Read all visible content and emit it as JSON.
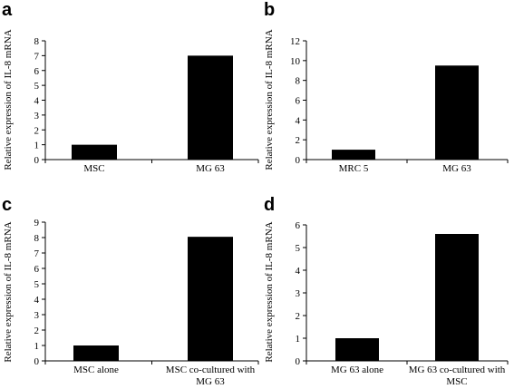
{
  "panels": [
    {
      "letter": "a"
    },
    {
      "letter": "b"
    },
    {
      "letter": "c"
    },
    {
      "letter": "d"
    }
  ],
  "chart_data": [
    {
      "type": "bar",
      "ylabel": "Relative expression of IL-8 mRNA",
      "categories": [
        [
          "MSC"
        ],
        [
          "MG 63"
        ]
      ],
      "values": [
        1.0,
        7.0
      ],
      "ylim": [
        0,
        8
      ],
      "yticks": [
        0,
        1,
        2,
        3,
        4,
        5,
        6,
        7,
        8
      ],
      "bar_color": "#000000",
      "grid": false
    },
    {
      "type": "bar",
      "ylabel": "Relative expression of IL-8 mRNA",
      "categories": [
        [
          "MRC 5"
        ],
        [
          "MG 63"
        ]
      ],
      "values": [
        1.0,
        9.5
      ],
      "ylim": [
        0,
        12
      ],
      "yticks": [
        0,
        2,
        4,
        6,
        8,
        10,
        12
      ],
      "bar_color": "#000000",
      "grid": false
    },
    {
      "type": "bar",
      "ylabel": "Relative expression of IL-8 mRNA",
      "categories": [
        [
          "MSC alone"
        ],
        [
          "MSC co-cultured with",
          "MG 63"
        ]
      ],
      "values": [
        1.0,
        8.05
      ],
      "ylim": [
        0,
        9
      ],
      "yticks": [
        0,
        1,
        2,
        3,
        4,
        5,
        6,
        7,
        8,
        9
      ],
      "bar_color": "#000000",
      "grid": false
    },
    {
      "type": "bar",
      "ylabel": "Relative expression of IL-8 mRNA",
      "categories": [
        [
          "MG 63 alone"
        ],
        [
          "MG 63 co-cultured with",
          "MSC"
        ]
      ],
      "values": [
        1.0,
        5.6
      ],
      "ylim": [
        0,
        6
      ],
      "yticks": [
        0,
        1,
        2,
        3,
        4,
        5,
        6
      ],
      "bar_color": "#000000",
      "grid": false
    }
  ]
}
